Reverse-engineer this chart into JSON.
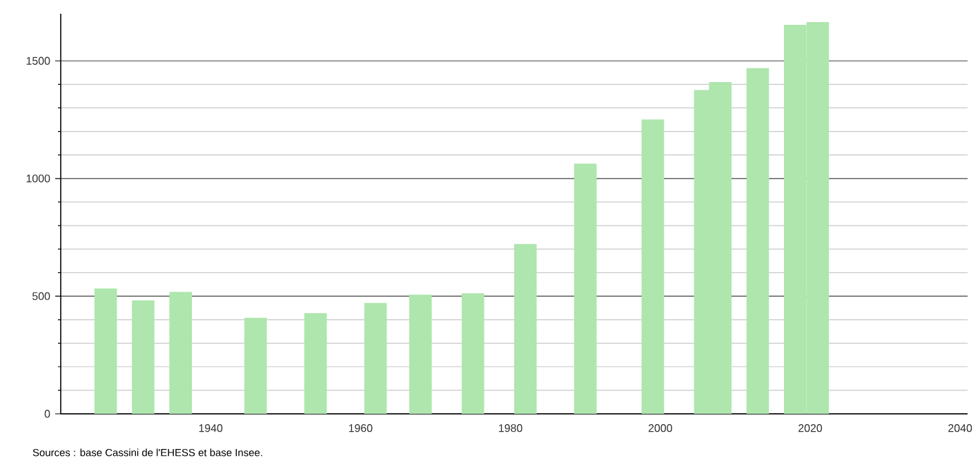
{
  "chart_data": {
    "type": "bar",
    "x": [
      1926,
      1931,
      1936,
      1946,
      1954,
      1962,
      1968,
      1975,
      1982,
      1990,
      1999,
      2006,
      2008,
      2013,
      2018,
      2021
    ],
    "values": [
      533,
      482,
      518,
      408,
      428,
      471,
      506,
      512,
      722,
      1063,
      1251,
      1376,
      1410,
      1469,
      1653,
      1665
    ],
    "color": "#aee6ae",
    "xlim": [
      1920,
      2041
    ],
    "xticks": [
      1940,
      1960,
      1980,
      2000,
      2020,
      2040
    ],
    "ylim": [
      0,
      1700
    ],
    "yticks": [
      0,
      500,
      1000,
      1500
    ],
    "grid": "y",
    "annotations": [
      "Sources : base Cassini de l'EHESS et base Insee."
    ]
  }
}
